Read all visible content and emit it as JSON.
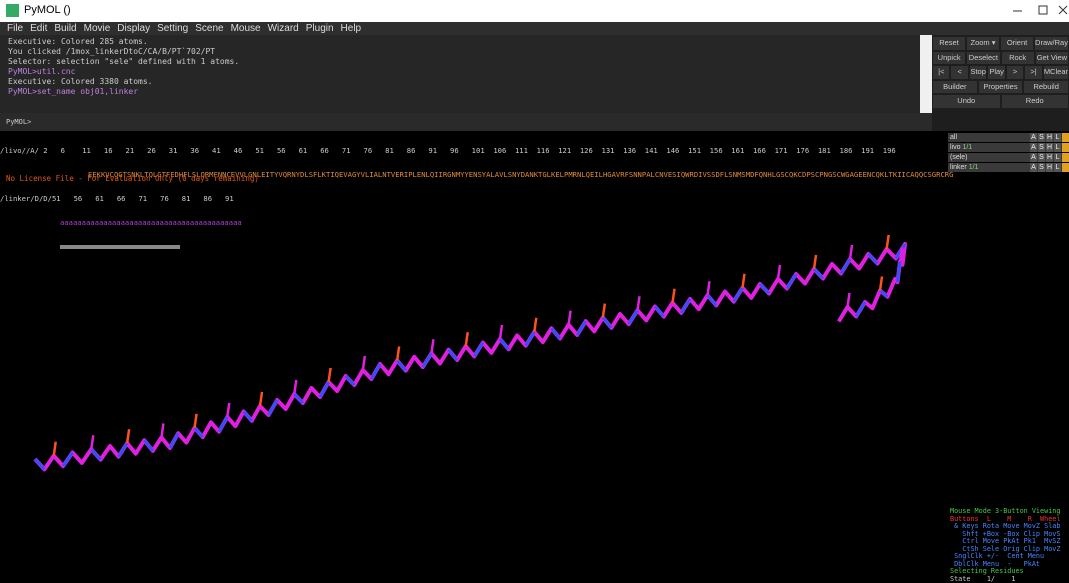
{
  "window": {
    "title": "PyMOL ()"
  },
  "menu": [
    "File",
    "Edit",
    "Build",
    "Movie",
    "Display",
    "Setting",
    "Scene",
    "Mouse",
    "Wizard",
    "Plugin",
    "Help"
  ],
  "console": {
    "lines": [
      "Executive: Colored 285 atoms.",
      "You clicked /1mox_linkerDtoC/CA/B/PT`702/PT",
      "Selector: selection \"sele\" defined with 1 atoms.",
      "PyMOL>util.cnc",
      "Executive: Colored 3380 atoms.",
      "PyMOL>set_name obj01,linker"
    ],
    "prompt": "PyMOL>"
  },
  "buttons": [
    [
      "Reset",
      "Zoom ▾",
      "Orient",
      "Draw/Ray ▾"
    ],
    [
      "Unpick",
      "Deselect",
      "Rock",
      "Get View"
    ],
    [
      "|<",
      "<",
      "Stop",
      "Play",
      ">",
      ">|",
      "MClear"
    ],
    [
      "Builder",
      "Properties",
      "Rebuild"
    ],
    [
      "Undo",
      "Redo"
    ]
  ],
  "sequence": {
    "ruler_label": "/livo//A/",
    "ruler": "2   6    11   16   21   26   31   36   41   46   51   56   61   66   71   76   81   86   91   96   101  106  111  116  121  126  131  136  141  146  151  156  161  166  171  176  181  186  191  196",
    "residues": "EEKKVCQGTSNKLTQLGTFEDHFLSLQRMFNNCEVVLGNLEITYVQRNYDLSFLKTIQEVAGYVLIALNTVERIPLENLQIIRGNMYYENSYALAVLSNYDANKTGLKELPMRNLQEILHGAVRFSNNPALCNVESIQWRDIVSSDFLSNMSMDFQNHLGSCQKCDPSCPNGSCWGAGEENCQKLTKIICAQQCSGRCRG",
    "linker_label": "/linker/D/D/",
    "linker_ruler": "51   56   61   66   71   76   81   86   91",
    "linker_residues": "aaaaaaaaaaaaaaaaaaaaaaaaaaaaaaaaaaaaaaaaaa"
  },
  "viewport": {
    "notice": "No License File - For Evaluation Only (0 days remaining)"
  },
  "objects": [
    {
      "name": "all"
    },
    {
      "name": "livo",
      "state": "1/1"
    },
    {
      "name": "(sele)"
    },
    {
      "name": "linker",
      "state": "1/1"
    }
  ],
  "object_buttons": [
    "A",
    "S",
    "H",
    "L"
  ],
  "mouse_panel": [
    "Mouse Mode 3-Button Viewing",
    "Buttons  L    M    R  Wheel",
    " & Keys Rota Move MovZ Slab",
    "   Shft +Box -Box Clip MovS",
    "   Ctrl Move PkAt Pk1  MvSZ",
    "   CtSh Sele Orig Clip MovZ",
    " SnglClk +/-  Cent Menu",
    " DblClk Menu  -   PkAt",
    "Selecting Residues",
    "State    1/    1"
  ]
}
